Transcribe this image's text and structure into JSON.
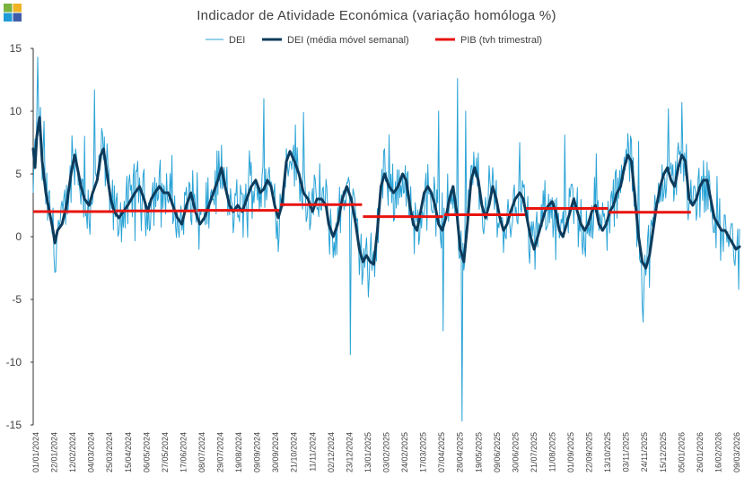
{
  "logo": {
    "colors": [
      "#7ab33e",
      "#f0b323",
      "#1f9bd7",
      "#3f5ca9"
    ],
    "name": "logo-icon"
  },
  "chart_data": {
    "type": "line",
    "title": "Indicador de Atividade Económica (variação homóloga %)",
    "xlabel": "",
    "ylabel": "",
    "ylim": [
      -15,
      15
    ],
    "yticks": [
      15,
      10,
      5,
      0,
      -5,
      -10,
      -15
    ],
    "ytick_labels": [
      "15",
      "10",
      "5",
      "0",
      "-5",
      "-10",
      "-15"
    ],
    "x_start": "01/01/2024",
    "x_end": "16/03/2026",
    "xticks": [
      "01/01/2024",
      "22/01/2024",
      "12/02/2024",
      "04/03/2024",
      "25/03/2024",
      "15/04/2024",
      "06/05/2024",
      "27/05/2024",
      "17/06/2024",
      "08/07/2024",
      "29/07/2024",
      "19/08/2024",
      "09/09/2024",
      "30/09/2024",
      "21/10/2024",
      "11/11/2024",
      "02/12/2024",
      "23/12/2024",
      "13/01/2025",
      "03/02/2025",
      "24/02/2025",
      "17/03/2025",
      "07/04/2025",
      "28/04/2025",
      "19/05/2025",
      "09/06/2025",
      "30/06/2025",
      "21/07/2025",
      "11/08/2025",
      "01/09/2025",
      "22/09/2025",
      "13/10/2025",
      "03/11/2025",
      "24/11/2025",
      "15/12/2025",
      "05/01/2026",
      "26/01/2026",
      "16/02/2026",
      "09/03/2026"
    ],
    "grid": false,
    "legend": {
      "position": "top-center",
      "entries": [
        "DEI",
        "DEI (média móvel semanal)",
        "PIB (tvh trimestral)"
      ]
    },
    "series": [
      {
        "name": "DEI",
        "color": "#2aa3d6",
        "line_width": 1,
        "note": "daily values; the plotted daily curve is generated from the weekly moving average plus daily noise",
        "anchors": [
          [
            0,
            3.5
          ],
          [
            5,
            14.3
          ],
          [
            12,
            9.2
          ],
          [
            25,
            -2.8
          ],
          [
            45,
            6.0
          ],
          [
            57,
            8.0
          ],
          [
            68,
            11.7
          ],
          [
            112,
            5.8
          ],
          [
            182,
            5.1
          ],
          [
            210,
            3.8
          ],
          [
            256,
            11.0
          ],
          [
            300,
            9.9
          ],
          [
            320,
            2.1
          ],
          [
            335,
            -1.5
          ],
          [
            352,
            -9.4
          ],
          [
            372,
            -4.8
          ],
          [
            395,
            8.1
          ],
          [
            450,
            10.0
          ],
          [
            455,
            -7.5
          ],
          [
            460,
            5.0
          ],
          [
            471,
            12.6
          ],
          [
            476,
            -14.7
          ],
          [
            480,
            10.0
          ],
          [
            490,
            5.0
          ],
          [
            510,
            5.5
          ],
          [
            540,
            7.5
          ],
          [
            590,
            8.1
          ],
          [
            625,
            6.6
          ],
          [
            672,
            7.6
          ],
          [
            677,
            -6.8
          ],
          [
            705,
            10.2
          ],
          [
            720,
            10.7
          ],
          [
            783,
            -4.2
          ],
          [
            786,
            1.6
          ]
        ]
      },
      {
        "name": "DEI (média móvel semanal)",
        "color": "#0d3b5c",
        "line_width": 3,
        "points": [
          [
            0,
            7.0
          ],
          [
            2,
            5.5
          ],
          [
            4,
            8.0
          ],
          [
            7,
            9.5
          ],
          [
            10,
            6.0
          ],
          [
            14,
            3.5
          ],
          [
            18,
            2.0
          ],
          [
            22,
            0.5
          ],
          [
            24,
            -0.5
          ],
          [
            27,
            0.5
          ],
          [
            32,
            1.0
          ],
          [
            37,
            2.5
          ],
          [
            42,
            5.0
          ],
          [
            46,
            6.5
          ],
          [
            49,
            5.5
          ],
          [
            53,
            4.0
          ],
          [
            57,
            3.0
          ],
          [
            62,
            2.5
          ],
          [
            66,
            3.5
          ],
          [
            71,
            4.5
          ],
          [
            75,
            6.5
          ],
          [
            78,
            7.0
          ],
          [
            82,
            5.0
          ],
          [
            86,
            3.0
          ],
          [
            90,
            2.0
          ],
          [
            95,
            1.5
          ],
          [
            100,
            2.0
          ],
          [
            105,
            2.5
          ],
          [
            109,
            3.0
          ],
          [
            113,
            3.5
          ],
          [
            118,
            4.0
          ],
          [
            123,
            3.0
          ],
          [
            127,
            2.0
          ],
          [
            131,
            3.0
          ],
          [
            135,
            3.5
          ],
          [
            140,
            4.0
          ],
          [
            145,
            3.5
          ],
          [
            150,
            3.5
          ],
          [
            155,
            2.5
          ],
          [
            160,
            1.5
          ],
          [
            165,
            1.0
          ],
          [
            170,
            2.5
          ],
          [
            175,
            3.5
          ],
          [
            180,
            2.0
          ],
          [
            185,
            1.0
          ],
          [
            190,
            1.5
          ],
          [
            195,
            2.5
          ],
          [
            200,
            3.5
          ],
          [
            205,
            4.5
          ],
          [
            209,
            5.5
          ],
          [
            213,
            4.0
          ],
          [
            218,
            2.5
          ],
          [
            222,
            2.0
          ],
          [
            227,
            2.5
          ],
          [
            232,
            2.0
          ],
          [
            237,
            3.0
          ],
          [
            242,
            4.0
          ],
          [
            247,
            4.5
          ],
          [
            252,
            3.5
          ],
          [
            256,
            3.8
          ],
          [
            260,
            4.5
          ],
          [
            264,
            4.0
          ],
          [
            268,
            2.5
          ],
          [
            272,
            1.5
          ],
          [
            276,
            2.5
          ],
          [
            281,
            6.0
          ],
          [
            285,
            6.8
          ],
          [
            290,
            6.0
          ],
          [
            295,
            5.0
          ],
          [
            300,
            3.5
          ],
          [
            305,
            3.0
          ],
          [
            310,
            2.0
          ],
          [
            315,
            3.0
          ],
          [
            320,
            3.0
          ],
          [
            325,
            2.5
          ],
          [
            328,
            1.0
          ],
          [
            333,
            0.0
          ],
          [
            338,
            1.0
          ],
          [
            343,
            3.0
          ],
          [
            348,
            4.0
          ],
          [
            353,
            3.0
          ],
          [
            358,
            1.0
          ],
          [
            362,
            -1.0
          ],
          [
            366,
            -2.0
          ],
          [
            370,
            -1.5
          ],
          [
            374,
            -2.0
          ],
          [
            378,
            -2.2
          ],
          [
            382,
            0.5
          ],
          [
            386,
            4.0
          ],
          [
            390,
            5.0
          ],
          [
            395,
            4.0
          ],
          [
            400,
            3.5
          ],
          [
            405,
            4.0
          ],
          [
            410,
            5.0
          ],
          [
            414,
            4.5
          ],
          [
            418,
            2.5
          ],
          [
            422,
            1.0
          ],
          [
            426,
            0.5
          ],
          [
            430,
            2.0
          ],
          [
            434,
            3.5
          ],
          [
            438,
            4.0
          ],
          [
            442,
            3.5
          ],
          [
            446,
            2.5
          ],
          [
            450,
            1.0
          ],
          [
            454,
            0.5
          ],
          [
            458,
            1.5
          ],
          [
            462,
            3.0
          ],
          [
            466,
            4.0
          ],
          [
            470,
            2.0
          ],
          [
            474,
            -1.0
          ],
          [
            478,
            -2.0
          ],
          [
            482,
            1.0
          ],
          [
            486,
            4.5
          ],
          [
            490,
            5.5
          ],
          [
            494,
            4.5
          ],
          [
            498,
            2.5
          ],
          [
            502,
            1.5
          ],
          [
            506,
            2.5
          ],
          [
            510,
            4.0
          ],
          [
            514,
            3.0
          ],
          [
            518,
            1.5
          ],
          [
            522,
            0.5
          ],
          [
            526,
            1.0
          ],
          [
            530,
            2.0
          ],
          [
            535,
            3.0
          ],
          [
            540,
            3.5
          ],
          [
            544,
            3.0
          ],
          [
            548,
            1.5
          ],
          [
            552,
            0.0
          ],
          [
            556,
            -1.0
          ],
          [
            560,
            0.0
          ],
          [
            564,
            1.0
          ],
          [
            568,
            2.0
          ],
          [
            572,
            2.5
          ],
          [
            576,
            2.8
          ],
          [
            580,
            2.0
          ],
          [
            584,
            0.5
          ],
          [
            588,
            0.0
          ],
          [
            592,
            1.0
          ],
          [
            596,
            2.0
          ],
          [
            600,
            3.0
          ],
          [
            604,
            2.0
          ],
          [
            608,
            1.0
          ],
          [
            612,
            0.5
          ],
          [
            616,
            1.0
          ],
          [
            620,
            2.0
          ],
          [
            624,
            2.5
          ],
          [
            628,
            1.0
          ],
          [
            632,
            0.5
          ],
          [
            636,
            1.0
          ],
          [
            640,
            2.0
          ],
          [
            644,
            2.5
          ],
          [
            648,
            3.5
          ],
          [
            652,
            4.0
          ],
          [
            656,
            5.5
          ],
          [
            660,
            6.5
          ],
          [
            664,
            6.0
          ],
          [
            668,
            3.0
          ],
          [
            672,
            0.0
          ],
          [
            676,
            -2.0
          ],
          [
            680,
            -2.5
          ],
          [
            684,
            -1.5
          ],
          [
            688,
            0.5
          ],
          [
            692,
            2.5
          ],
          [
            696,
            4.0
          ],
          [
            700,
            5.0
          ],
          [
            704,
            5.5
          ],
          [
            708,
            4.5
          ],
          [
            712,
            4.0
          ],
          [
            716,
            5.5
          ],
          [
            720,
            6.5
          ],
          [
            724,
            6.0
          ],
          [
            728,
            3.0
          ],
          [
            732,
            2.5
          ],
          [
            736,
            3.0
          ],
          [
            740,
            4.0
          ],
          [
            744,
            4.5
          ],
          [
            748,
            4.5
          ],
          [
            752,
            3.0
          ],
          [
            756,
            1.5
          ],
          [
            760,
            1.0
          ],
          [
            764,
            0.5
          ],
          [
            768,
            0.5
          ],
          [
            772,
            0.0
          ],
          [
            776,
            -0.5
          ],
          [
            780,
            -1.0
          ],
          [
            784,
            -0.8
          ]
        ]
      },
      {
        "name": "PIB (tvh trimestral)",
        "color": "#e8140f",
        "line_width": 3,
        "segments": [
          {
            "x_from": 0,
            "x_to": 90,
            "value": 2.0
          },
          {
            "x_from": 91,
            "x_to": 181,
            "value": 2.05
          },
          {
            "x_from": 182,
            "x_to": 273,
            "value": 2.1
          },
          {
            "x_from": 274,
            "x_to": 365,
            "value": 2.55
          },
          {
            "x_from": 366,
            "x_to": 455,
            "value": 1.6
          },
          {
            "x_from": 456,
            "x_to": 546,
            "value": 1.75
          },
          {
            "x_from": 547,
            "x_to": 638,
            "value": 2.25
          },
          {
            "x_from": 639,
            "x_to": 730,
            "value": 1.95
          }
        ]
      }
    ]
  }
}
